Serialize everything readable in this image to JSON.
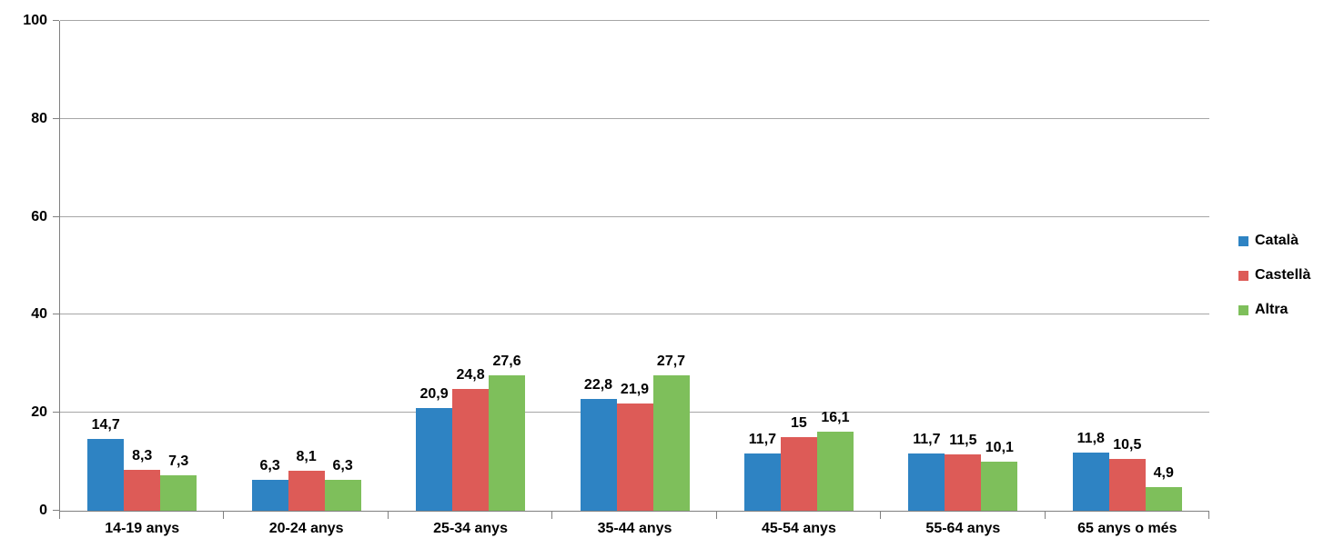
{
  "chart_data": {
    "type": "bar",
    "title": "",
    "xlabel": "",
    "ylabel": "",
    "categories": [
      "14-19 anys",
      "20-24 anys",
      "25-34 anys",
      "35-44 anys",
      "45-54 anys",
      "55-64 anys",
      "65 anys o més"
    ],
    "series": [
      {
        "name": "Català",
        "color": "#2E83C3",
        "values": [
          14.7,
          6.3,
          20.9,
          22.8,
          11.7,
          11.7,
          11.8
        ],
        "labels": [
          "14,7",
          "6,3",
          "20,9",
          "22,8",
          "11,7",
          "11,7",
          "11,8"
        ]
      },
      {
        "name": "Castellà",
        "color": "#DD5B57",
        "values": [
          8.3,
          8.1,
          24.8,
          21.9,
          15,
          11.5,
          10.5
        ],
        "labels": [
          "8,3",
          "8,1",
          "24,8",
          "21,9",
          "15",
          "11,5",
          "10,5"
        ]
      },
      {
        "name": "Altra",
        "color": "#7EBF5B",
        "values": [
          7.3,
          6.3,
          27.6,
          27.7,
          16.1,
          10.1,
          4.9
        ],
        "labels": [
          "7,3",
          "6,3",
          "27,6",
          "27,7",
          "16,1",
          "10,1",
          "4,9"
        ]
      }
    ],
    "ylim": [
      0,
      100
    ],
    "yticks": [
      0,
      20,
      40,
      60,
      80,
      100
    ],
    "ytick_labels": [
      "0",
      "20",
      "40",
      "60",
      "80",
      "100"
    ],
    "grid": true,
    "legend_position": "right"
  },
  "colors": {
    "gridline": "#A6A6A6",
    "axis": "#808080",
    "text": "#000000",
    "background": "#FFFFFF"
  }
}
